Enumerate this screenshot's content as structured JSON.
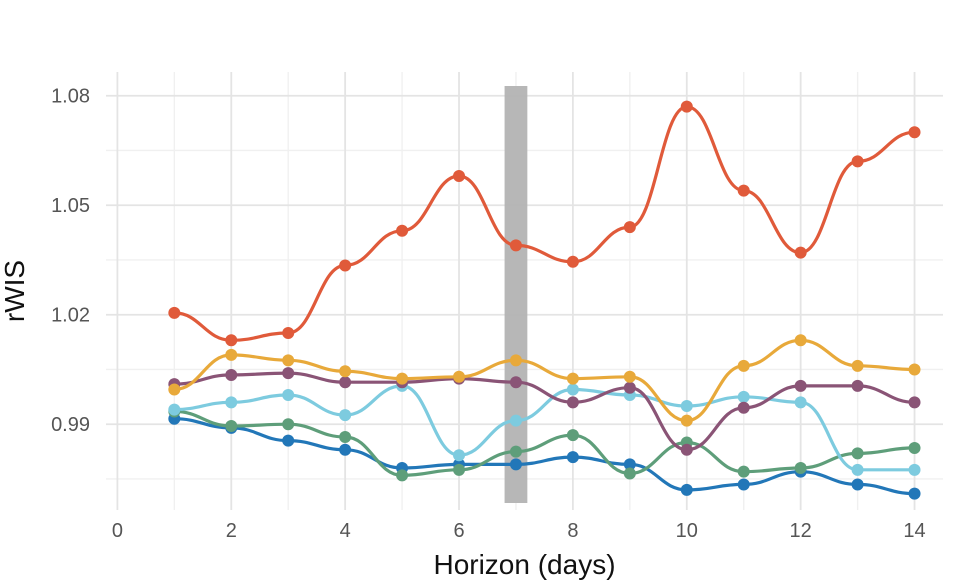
{
  "chart_data": {
    "type": "line",
    "title": "",
    "xlabel": "Horizon (days)",
    "ylabel": "rWIS",
    "xlim": [
      -0.2,
      14.5
    ],
    "ylim": [
      0.9665,
      1.0865
    ],
    "x_ticks": [
      0,
      2,
      4,
      6,
      8,
      10,
      12,
      14
    ],
    "y_ticks": [
      0.99,
      1.02,
      1.05,
      1.08
    ],
    "y_tick_labels": [
      "0.99",
      "1.02",
      "1.05",
      "1.08"
    ],
    "grid": true,
    "legend": "none",
    "highlight_band": {
      "x_start": 6.8,
      "x_end": 7.2,
      "color": "#b3b3b3"
    },
    "x": [
      1,
      2,
      3,
      4,
      5,
      6,
      7,
      8,
      9,
      10,
      11,
      12,
      13,
      14
    ],
    "series": [
      {
        "color": "#e05a3a",
        "values": [
          1.0205,
          1.013,
          1.015,
          1.0335,
          1.043,
          1.058,
          1.039,
          1.0345,
          1.044,
          1.077,
          1.054,
          1.037,
          1.062,
          1.07
        ]
      },
      {
        "color": "#e8a93a",
        "values": [
          0.9995,
          1.009,
          1.0075,
          1.0045,
          1.0025,
          1.003,
          1.0075,
          1.0025,
          1.003,
          0.991,
          1.006,
          1.013,
          1.006,
          1.005
        ]
      },
      {
        "color": "#8a5476",
        "values": [
          1.001,
          1.0035,
          1.004,
          1.0015,
          1.0015,
          1.0025,
          1.0015,
          0.996,
          1.0,
          0.983,
          0.9945,
          1.0005,
          1.0005,
          0.996
        ]
      },
      {
        "color": "#7dcbdf",
        "values": [
          0.994,
          0.996,
          0.998,
          0.9925,
          1.0005,
          0.9815,
          0.991,
          0.9995,
          0.998,
          0.995,
          0.9975,
          0.996,
          0.9775,
          0.9775
        ]
      },
      {
        "color": "#5e9e7a",
        "values": [
          0.9935,
          0.9895,
          0.99,
          0.9865,
          0.976,
          0.9775,
          0.9825,
          0.987,
          0.9765,
          0.985,
          0.977,
          0.978,
          0.982,
          0.9835
        ]
      },
      {
        "color": "#2277b8",
        "values": [
          0.9915,
          0.989,
          0.9855,
          0.983,
          0.978,
          0.979,
          0.979,
          0.981,
          0.979,
          0.972,
          0.9735,
          0.977,
          0.9735,
          0.971
        ]
      }
    ]
  }
}
